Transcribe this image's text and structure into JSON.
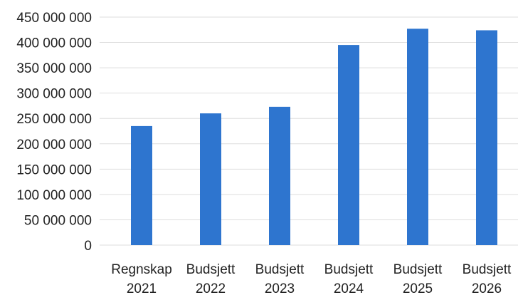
{
  "chart_data": {
    "type": "bar",
    "title": "",
    "xlabel": "",
    "ylabel": "",
    "categories": [
      [
        "Regnskap",
        "2021"
      ],
      [
        "Budsjett",
        "2022"
      ],
      [
        "Budsjett",
        "2023"
      ],
      [
        "Budsjett",
        "2024"
      ],
      [
        "Budsjett",
        "2025"
      ],
      [
        "Budsjett",
        "2026"
      ]
    ],
    "values": [
      235000000,
      260000000,
      273000000,
      395000000,
      427000000,
      424000000
    ],
    "ylim": [
      0,
      450000000
    ],
    "y_ticks": [
      0,
      50000000,
      100000000,
      150000000,
      200000000,
      250000000,
      300000000,
      350000000,
      400000000,
      450000000
    ],
    "y_tick_labels": [
      "0",
      "50 000 000",
      "100 000 000",
      "150 000 000",
      "200 000 000",
      "250 000 000",
      "300 000 000",
      "350 000 000",
      "400 000 000",
      "450 000 000"
    ],
    "grid": true,
    "legend": "none",
    "bar_color": "#2e75cf",
    "grid_color": "#dddddd"
  }
}
